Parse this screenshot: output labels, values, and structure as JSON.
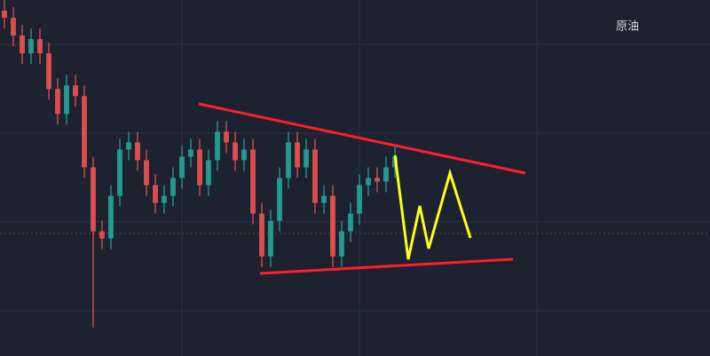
{
  "chart_data": {
    "type": "candlestick",
    "title": "原油",
    "open": [
      97,
      95,
      90,
      85,
      89,
      85,
      75,
      68,
      76,
      73,
      53,
      35,
      33,
      45,
      58,
      60,
      55,
      48,
      43,
      45,
      50,
      56,
      58,
      48,
      55,
      63,
      60,
      55,
      58,
      40,
      28,
      38,
      50,
      60,
      53,
      58,
      43,
      45,
      28,
      35,
      40,
      48,
      50,
      49,
      53
    ],
    "high": [
      100,
      98,
      93,
      92,
      92,
      88,
      78,
      79,
      79,
      76,
      56,
      38,
      48,
      61,
      63,
      63,
      58,
      51,
      48,
      53,
      59,
      61,
      61,
      58,
      66,
      66,
      63,
      61,
      61,
      43,
      41,
      53,
      63,
      63,
      61,
      61,
      48,
      48,
      38,
      43,
      51,
      53,
      53,
      56,
      59
    ],
    "low": [
      92,
      87,
      82,
      82,
      82,
      72,
      65,
      65,
      70,
      50,
      8,
      30,
      30,
      42,
      55,
      52,
      45,
      40,
      40,
      42,
      47,
      53,
      45,
      45,
      52,
      57,
      52,
      52,
      37,
      25,
      25,
      35,
      47,
      50,
      50,
      40,
      40,
      25,
      25,
      32,
      37,
      45,
      46,
      46,
      50
    ],
    "close": [
      95,
      90,
      85,
      89,
      85,
      75,
      68,
      76,
      73,
      53,
      35,
      33,
      45,
      58,
      60,
      55,
      48,
      43,
      45,
      50,
      56,
      58,
      48,
      55,
      63,
      60,
      55,
      58,
      40,
      28,
      38,
      50,
      60,
      53,
      58,
      43,
      45,
      28,
      35,
      40,
      48,
      50,
      49,
      53,
      56
    ],
    "ylim": [
      0,
      100
    ],
    "up_color": "#26a69a",
    "down_color": "#ef5350"
  }
}
